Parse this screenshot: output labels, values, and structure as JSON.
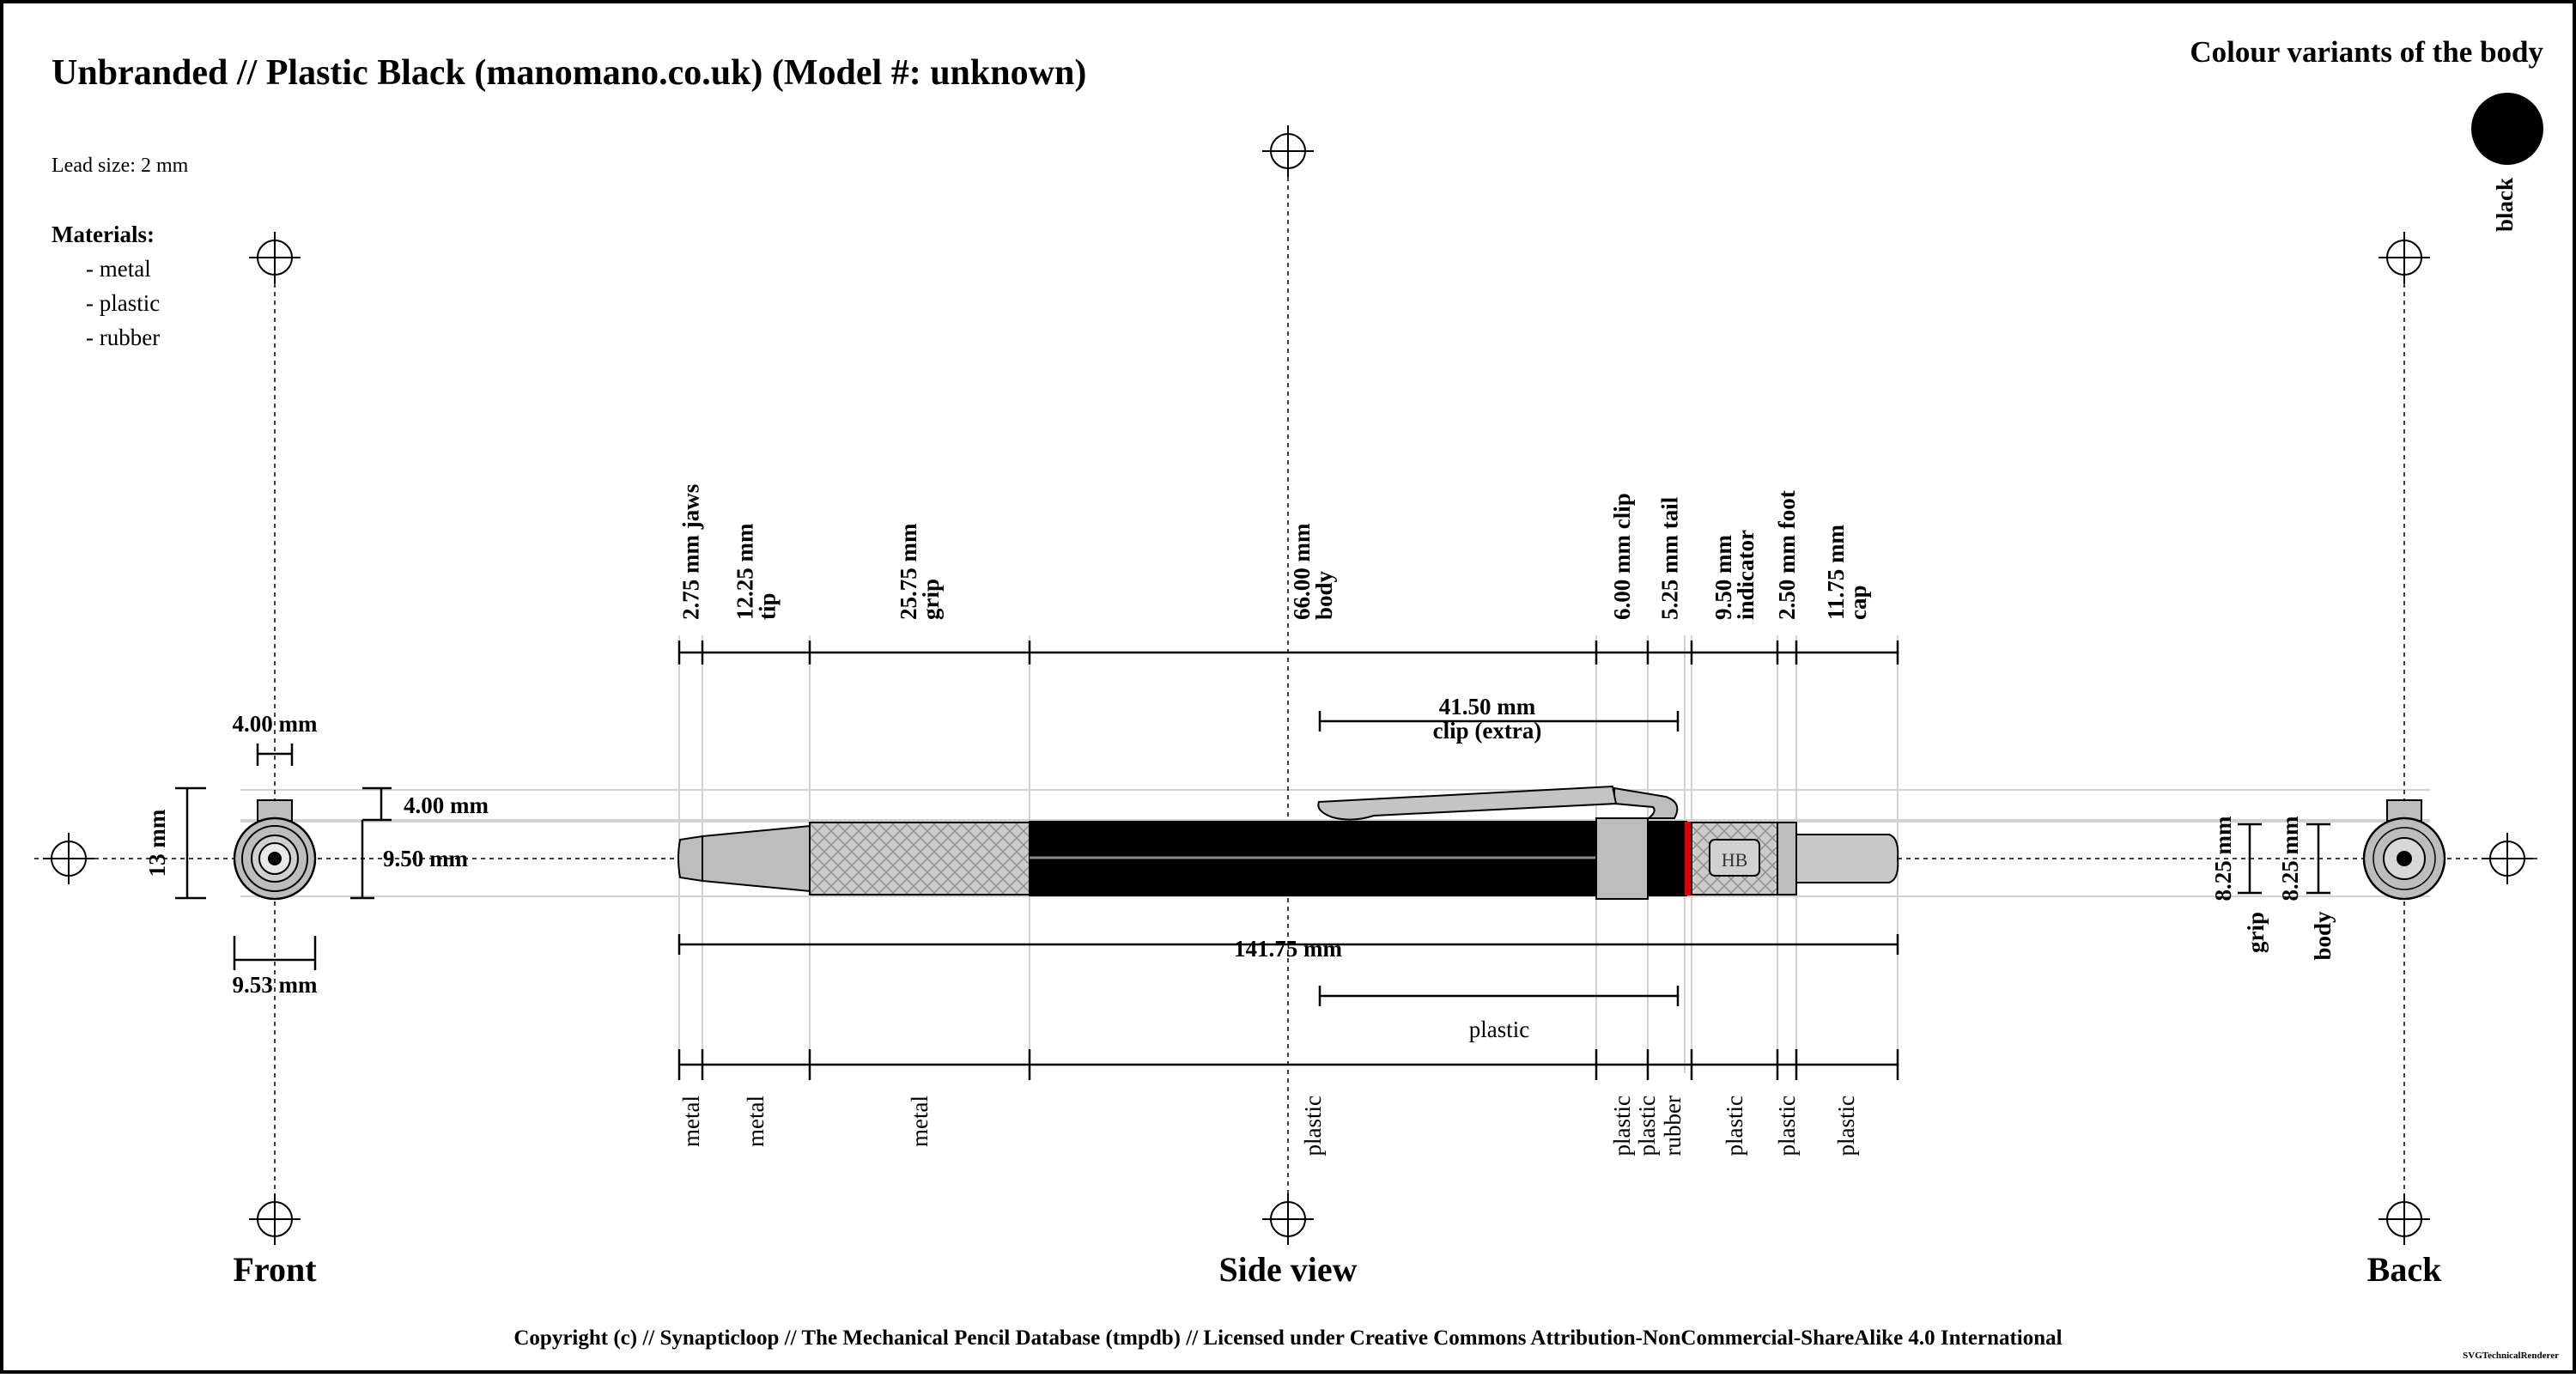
{
  "title": "Unbranded // Plastic Black (manomano.co.uk) (Model #: unknown)",
  "lead_size": "Lead size: 2 mm",
  "materials": {
    "heading": "Materials:",
    "items": [
      "- metal",
      "- plastic",
      "- rubber"
    ]
  },
  "colour_variants": {
    "heading": "Colour variants of the body",
    "items": [
      {
        "name": "black",
        "color": "#000000"
      }
    ]
  },
  "views": {
    "front": "Front",
    "side": "Side view",
    "back": "Back"
  },
  "front_dims": {
    "clip_width": "4.00 mm",
    "height": "13 mm",
    "clip_height": "4.00 mm",
    "body_height": "9.50 mm",
    "width": "9.53 mm"
  },
  "side_segments": [
    {
      "length": "2.75 mm",
      "name": "jaws",
      "material": "metal"
    },
    {
      "length": "12.25 mm",
      "name": "tip",
      "material": "metal"
    },
    {
      "length": "25.75 mm",
      "name": "grip",
      "material": "metal"
    },
    {
      "length": "66.00 mm",
      "name": "body",
      "material": "plastic"
    },
    {
      "length": "6.00 mm",
      "name": "clip",
      "material": "plastic"
    },
    {
      "length": "5.25 mm",
      "name": "tail",
      "material": "plastic"
    },
    {
      "length": "",
      "name": "",
      "material": "rubber"
    },
    {
      "length": "9.50 mm",
      "name": "indicator",
      "material": "plastic"
    },
    {
      "length": "2.50 mm",
      "name": "foot",
      "material": "plastic"
    },
    {
      "length": "11.75 mm",
      "name": "cap",
      "material": "plastic"
    }
  ],
  "clip_extra": {
    "length": "41.50 mm",
    "label": "clip (extra)",
    "material": "plastic"
  },
  "total_length": "141.75 mm",
  "indicator_text": "HB",
  "back_dims": {
    "grip": {
      "length": "8.25 mm",
      "name": "grip"
    },
    "body": {
      "length": "8.25 mm",
      "name": "body"
    }
  },
  "copyright": "Copyright (c) // Synapticloop // The Mechanical Pencil Database (tmpdb) // Licensed under Creative Commons Attribution-NonCommercial-ShareAlike 4.0 International",
  "renderer": "SVGTechnicalRenderer",
  "colors": {
    "body": "#000000",
    "metal": "#bdbdbd",
    "grip": "#cccccc",
    "accent": "#e00000",
    "guide": "#d2d2d2"
  }
}
